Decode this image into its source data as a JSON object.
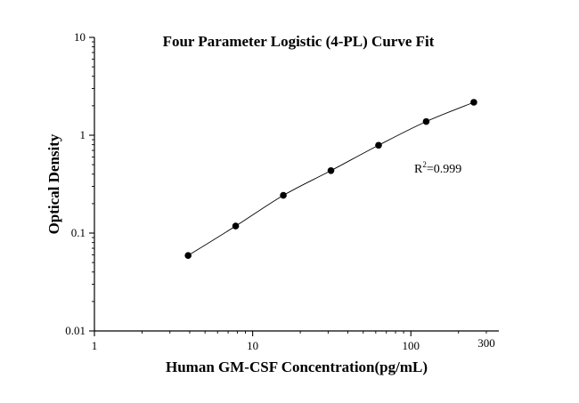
{
  "chart_data": {
    "type": "scatter",
    "title": "Four Parameter Logistic (4-PL) Curve Fit",
    "xlabel": "Human GM-CSF Concentration(pg/mL)",
    "ylabel": "Optical Density",
    "x_scale": "log",
    "y_scale": "log",
    "xlim": [
      1,
      300
    ],
    "ylim": [
      0.01,
      10
    ],
    "x_ticks": [
      {
        "value": 1,
        "label": "1"
      },
      {
        "value": 10,
        "label": "10"
      },
      {
        "value": 100,
        "label": "100"
      },
      {
        "value": 300,
        "label": "300"
      }
    ],
    "y_ticks": [
      {
        "value": 0.01,
        "label": "0.01"
      },
      {
        "value": 0.1,
        "label": "0.1"
      },
      {
        "value": 1,
        "label": "1"
      },
      {
        "value": 10,
        "label": "10"
      }
    ],
    "grid": false,
    "series": [
      {
        "x": [
          3.91,
          7.81,
          15.63,
          31.25,
          62.5,
          125,
          250
        ],
        "y": [
          0.059,
          0.118,
          0.243,
          0.435,
          0.79,
          1.38,
          2.17
        ],
        "marker_color": "#000000",
        "fit_line": "4-PL"
      }
    ],
    "annotations": [
      {
        "base": "R",
        "superscript": "2",
        "rest": "=0.999"
      }
    ]
  }
}
